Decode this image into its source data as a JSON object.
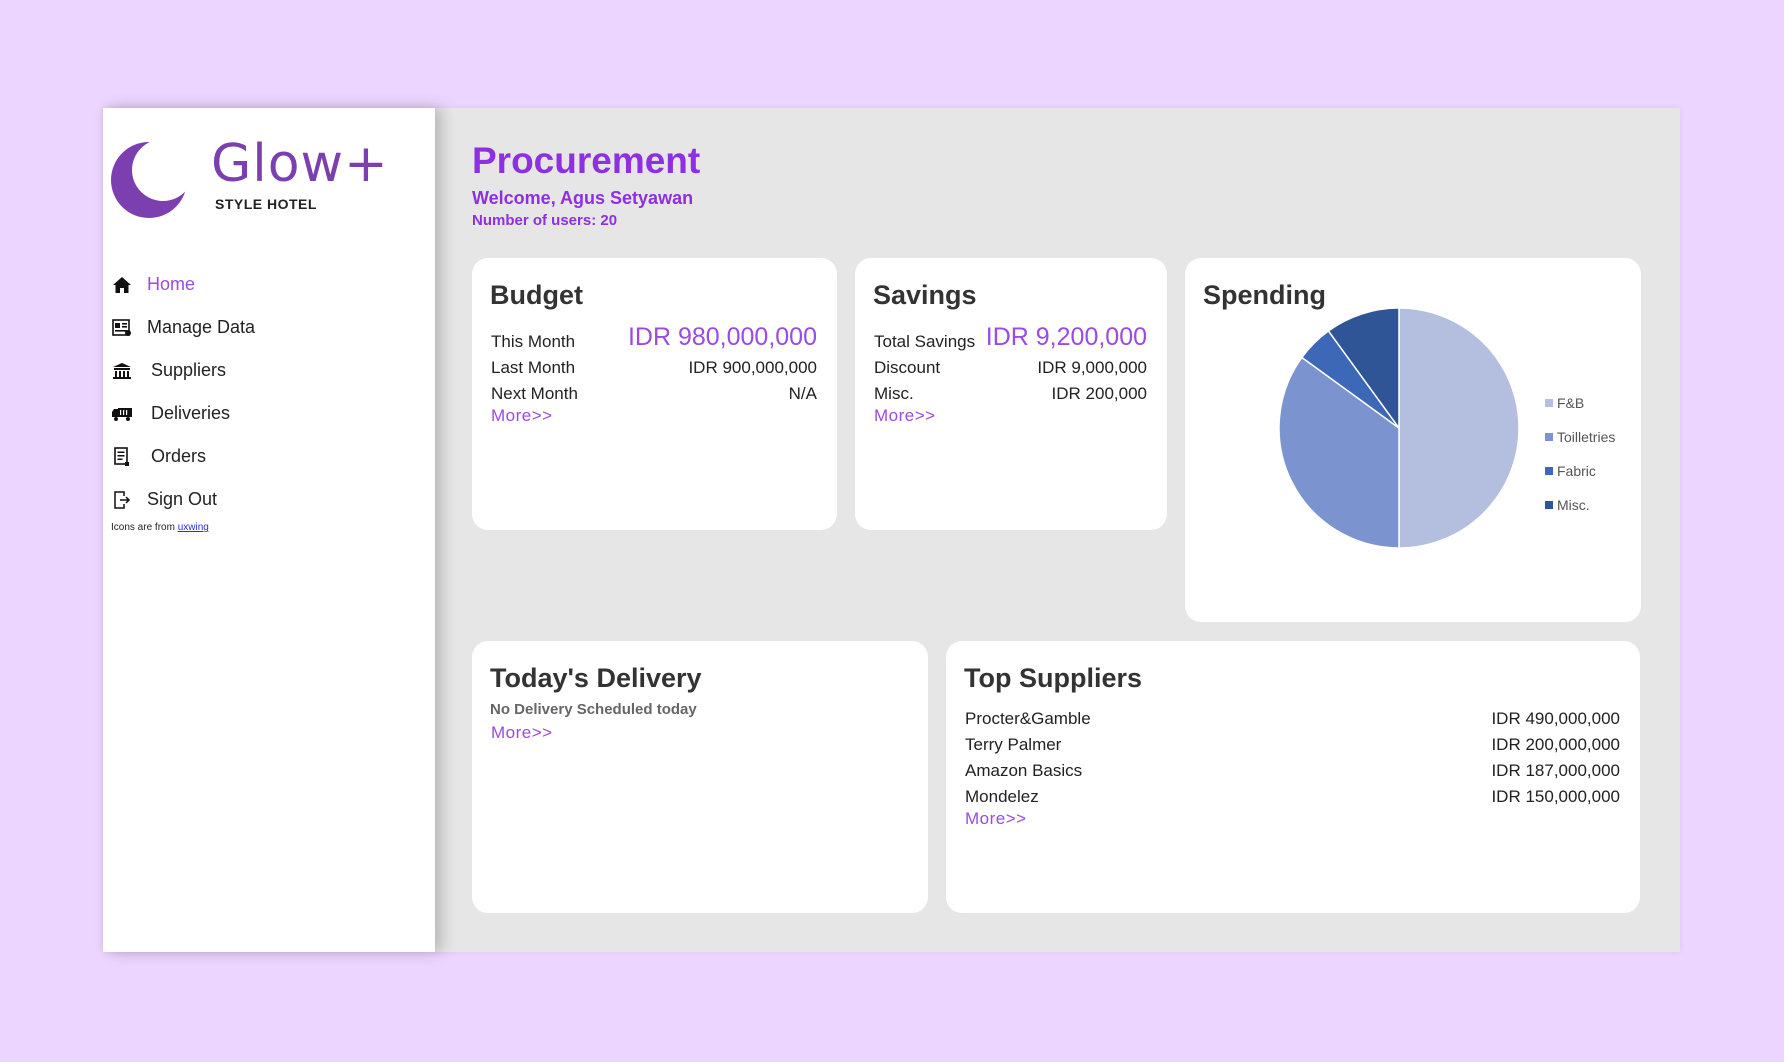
{
  "brand": {
    "name": "Glow+",
    "subtitle": "STYLE HOTEL",
    "color": "#7b3fb0"
  },
  "sidebar": {
    "items": [
      {
        "label": "Home",
        "icon": "home-icon",
        "active": true
      },
      {
        "label": "Manage Data",
        "icon": "manage-data-icon",
        "active": false
      },
      {
        "label": "Suppliers",
        "icon": "suppliers-icon",
        "active": false
      },
      {
        "label": "Deliveries",
        "icon": "truck-icon",
        "active": false
      },
      {
        "label": "Orders",
        "icon": "orders-icon",
        "active": false
      },
      {
        "label": "Sign Out",
        "icon": "sign-out-icon",
        "active": false
      }
    ],
    "credit_prefix": "Icons are from ",
    "credit_link": "uxwing"
  },
  "header": {
    "title": "Procurement",
    "welcome": "Welcome, Agus Setyawan",
    "users": "Number of users: 20"
  },
  "budget": {
    "title": "Budget",
    "this_month_label": "This Month",
    "this_month_value": "IDR 980,000,000",
    "last_month_label": "Last Month",
    "last_month_value": "IDR 900,000,000",
    "next_month_label": "Next Month",
    "next_month_value": "N/A",
    "more": "More>>"
  },
  "savings": {
    "title": "Savings",
    "total_label": "Total Savings",
    "total_value": "IDR 9,200,000",
    "discount_label": "Discount",
    "discount_value": "IDR 9,000,000",
    "misc_label": "Misc.",
    "misc_value": "IDR 200,000",
    "more": "More>>"
  },
  "spending": {
    "title": "Spending"
  },
  "chart_data": {
    "type": "pie",
    "title": "Spending",
    "categories": [
      "F&B",
      "Toilletries",
      "Fabric",
      "Misc."
    ],
    "values": [
      50,
      35,
      5,
      10
    ],
    "colors": [
      "#b4bfe0",
      "#7b93cf",
      "#3d68b8",
      "#2f5597"
    ],
    "legend": "right"
  },
  "delivery": {
    "title": "Today's Delivery",
    "note": "No Delivery Scheduled today",
    "more": "More>>"
  },
  "suppliers": {
    "title": "Top Suppliers",
    "rows": [
      {
        "name": "Procter&Gamble",
        "value": "IDR 490,000,000"
      },
      {
        "name": "Terry Palmer",
        "value": "IDR 200,000,000"
      },
      {
        "name": "Amazon Basics",
        "value": "IDR 187,000,000"
      },
      {
        "name": "Mondelez",
        "value": "IDR 150,000,000"
      }
    ],
    "more": "More>>"
  },
  "colors": {
    "accent": "#9a4be0",
    "title": "#8e2fe0",
    "page_bg": "#ecd6ff"
  }
}
